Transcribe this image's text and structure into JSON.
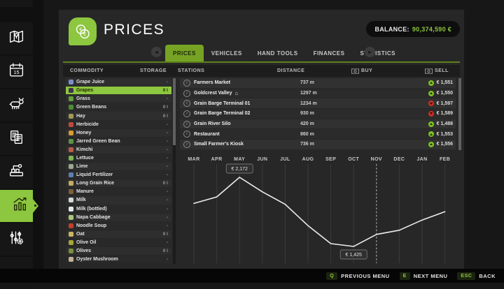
{
  "colors": {
    "accent": "#8dc63f",
    "accent_dark": "#76a324",
    "underline": "#5e7f1d",
    "price_up": "#7ec223",
    "price_down": "#c92f21"
  },
  "sidebar": {
    "items": [
      {
        "name": "map",
        "active": false
      },
      {
        "name": "calendar",
        "active": false
      },
      {
        "name": "animals",
        "active": false
      },
      {
        "name": "contracts",
        "active": false
      },
      {
        "name": "production",
        "active": false
      },
      {
        "name": "prices",
        "active": true
      },
      {
        "name": "settings",
        "active": false
      }
    ]
  },
  "header": {
    "title": "PRICES",
    "balance_label": "BALANCE:",
    "balance_value": "90,374,590 €"
  },
  "tabs": {
    "arrow_left": "◂",
    "arrow_right": "▸",
    "items": [
      "PRICES",
      "VEHICLES",
      "HAND TOOLS",
      "FINANCES",
      "STATISTICS"
    ],
    "active": "PRICES"
  },
  "columns": {
    "commodity": "COMMODITY",
    "storage": "STORAGE",
    "stations": "STATIONS",
    "distance": "DISTANCE",
    "buy": "BUY",
    "sell": "SELL"
  },
  "commodities": [
    {
      "name": "Grape Juice",
      "storage": "-",
      "icon": "grape-juice-icon",
      "color": "#7b8fc7",
      "selected": false
    },
    {
      "name": "Grapes",
      "storage": "0 l",
      "icon": "grapes-icon",
      "color": "#3f3154",
      "selected": true
    },
    {
      "name": "Grass",
      "storage": "-",
      "icon": "grass-icon",
      "color": "#63a23c",
      "selected": false
    },
    {
      "name": "Green Beans",
      "storage": "0 l",
      "icon": "green-beans-icon",
      "color": "#4e8c33",
      "selected": false
    },
    {
      "name": "Hay",
      "storage": "0 l",
      "icon": "hay-icon",
      "color": "#a39a55",
      "selected": false
    },
    {
      "name": "Herbicide",
      "storage": "-",
      "icon": "herbicide-icon",
      "color": "#c04a3a",
      "selected": false
    },
    {
      "name": "Honey",
      "storage": "-",
      "icon": "honey-icon",
      "color": "#d99b35",
      "selected": false
    },
    {
      "name": "Jarred Green Bean",
      "storage": "-",
      "icon": "jarred-green-bean-icon",
      "color": "#5f9347",
      "selected": false
    },
    {
      "name": "Kimchi",
      "storage": "-",
      "icon": "kimchi-icon",
      "color": "#b85c4a",
      "selected": false
    },
    {
      "name": "Lettuce",
      "storage": "-",
      "icon": "lettuce-icon",
      "color": "#7cb84f",
      "selected": false
    },
    {
      "name": "Lime",
      "storage": "-",
      "icon": "lime-icon",
      "color": "#9aa98f",
      "selected": false
    },
    {
      "name": "Liquid Fertilizer",
      "storage": "-",
      "icon": "liquid-fertilizer-icon",
      "color": "#5b7fb3",
      "selected": false
    },
    {
      "name": "Long Grain Rice",
      "storage": "0 l",
      "icon": "long-grain-rice-icon",
      "color": "#c6ab62",
      "selected": false
    },
    {
      "name": "Manure",
      "storage": "-",
      "icon": "manure-icon",
      "color": "#7d5f3c",
      "selected": false
    },
    {
      "name": "Milk",
      "storage": "-",
      "icon": "milk-icon",
      "color": "#d3d8dc",
      "selected": false
    },
    {
      "name": "Milk (bottled)",
      "storage": "-",
      "icon": "milk-bottled-icon",
      "color": "#e2e7ea",
      "selected": false
    },
    {
      "name": "Napa Cabbage",
      "storage": "-",
      "icon": "napa-cabbage-icon",
      "color": "#abc57e",
      "selected": false
    },
    {
      "name": "Noodle Soup",
      "storage": "-",
      "icon": "noodle-soup-icon",
      "color": "#c23f2e",
      "selected": false
    },
    {
      "name": "Oat",
      "storage": "0 l",
      "icon": "oat-icon",
      "color": "#cdb560",
      "selected": false
    },
    {
      "name": "Olive Oil",
      "storage": "-",
      "icon": "olive-oil-icon",
      "color": "#a8a838",
      "selected": false
    },
    {
      "name": "Olives",
      "storage": "0 l",
      "icon": "olives-icon",
      "color": "#79913e",
      "selected": false
    },
    {
      "name": "Oyster Mushroom",
      "storage": "-",
      "icon": "oyster-mushroom-icon",
      "color": "#c1b196",
      "selected": false
    }
  ],
  "stations": [
    {
      "name": "Farmers Market",
      "marker": false,
      "distance": "737 m",
      "trend": "up",
      "price": "€ 1,551"
    },
    {
      "name": "Goldcrest Valley",
      "marker": true,
      "distance": "1297 m",
      "trend": "up",
      "price": "€ 1,550"
    },
    {
      "name": "Grain Barge Terminal 01",
      "marker": false,
      "distance": "1234 m",
      "trend": "down",
      "price": "€ 1,597"
    },
    {
      "name": "Grain Barge Terminal 02",
      "marker": false,
      "distance": "930 m",
      "trend": "down",
      "price": "€ 1,589"
    },
    {
      "name": "Grain River Silo",
      "marker": false,
      "distance": "420 m",
      "trend": "up",
      "price": "€ 1,488"
    },
    {
      "name": "Restaurant",
      "marker": false,
      "distance": "860 m",
      "trend": "up",
      "price": "€ 1,553"
    },
    {
      "name": "Small Farmer's Kiosk",
      "marker": false,
      "distance": "736 m",
      "trend": "up",
      "price": "€ 1,556"
    }
  ],
  "chart_data": {
    "type": "line",
    "x": [
      "MAR",
      "APR",
      "MAY",
      "JUN",
      "JUL",
      "AUG",
      "SEP",
      "OCT",
      "NOV",
      "DEC",
      "JAN",
      "FEB"
    ],
    "values": [
      1890,
      1960,
      2172,
      2015,
      1880,
      1650,
      1455,
      1425,
      1555,
      1600,
      1710,
      1800
    ],
    "unit": "€",
    "ylim": [
      1350,
      2250
    ],
    "grid": "vertical-monthly",
    "current_month": "NOV",
    "annotations": [
      {
        "month": "MAY",
        "label": "€ 2,172",
        "position": "above"
      },
      {
        "month": "OCT",
        "label": "€ 1,425",
        "position": "below"
      }
    ]
  },
  "footer": {
    "items": [
      {
        "key": "Q",
        "label": "PREVIOUS MENU"
      },
      {
        "key": "E",
        "label": "NEXT MENU"
      },
      {
        "key": "ESC",
        "label": "BACK"
      }
    ]
  }
}
